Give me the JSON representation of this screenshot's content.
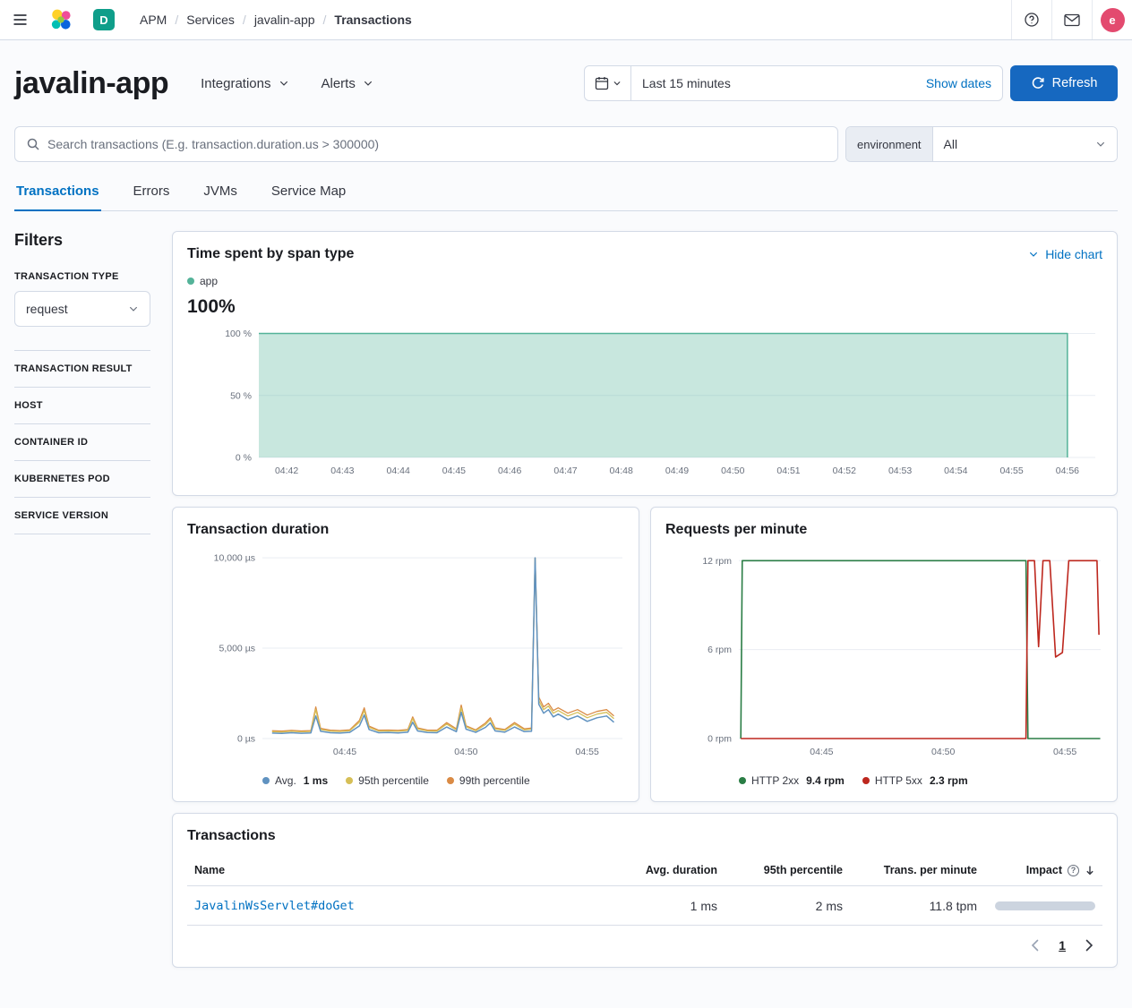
{
  "colors": {
    "primary_link": "#0071c2",
    "refresh_button": "#1668c0",
    "deployment_badge": "#0f9e8a",
    "avatar": "#e34a6f",
    "span_app": "#54B399",
    "avg_blue": "#6092C0",
    "p95_yellow": "#D6BF57",
    "p99_orange": "#DA8B45",
    "http2xx_green": "#2a7d45",
    "http5xx_red": "#BD271E"
  },
  "topbar": {
    "deployment_badge": "D",
    "breadcrumbs": [
      "APM",
      "Services",
      "javalin-app",
      "Transactions"
    ],
    "avatar_initial": "e"
  },
  "header": {
    "title": "javalin-app",
    "integrations_label": "Integrations",
    "alerts_label": "Alerts",
    "time_range": "Last 15 minutes",
    "show_dates": "Show dates",
    "refresh": "Refresh"
  },
  "search": {
    "placeholder": "Search transactions (E.g. transaction.duration.us > 300000)",
    "environment_label": "environment",
    "environment_value": "All"
  },
  "tabs": [
    {
      "label": "Transactions"
    },
    {
      "label": "Errors"
    },
    {
      "label": "JVMs"
    },
    {
      "label": "Service Map"
    }
  ],
  "filters": {
    "title": "Filters",
    "transaction_type": {
      "label": "TRANSACTION TYPE",
      "value": "request"
    },
    "sections": [
      "TRANSACTION RESULT",
      "HOST",
      "CONTAINER ID",
      "KUBERNETES POD",
      "SERVICE VERSION"
    ]
  },
  "span_panel": {
    "title": "Time spent by span type",
    "hide_chart": "Hide chart",
    "legend": [
      {
        "label": "app"
      }
    ],
    "big_value": "100%",
    "chart_data": {
      "type": "area",
      "xlim": [
        0,
        15
      ],
      "ylim": [
        0,
        104
      ],
      "x_ticks": [
        {
          "pos": 0.5,
          "label": "04:42"
        },
        {
          "pos": 1.5,
          "label": "04:43"
        },
        {
          "pos": 2.5,
          "label": "04:44"
        },
        {
          "pos": 3.5,
          "label": "04:45"
        },
        {
          "pos": 4.5,
          "label": "04:46"
        },
        {
          "pos": 5.5,
          "label": "04:47"
        },
        {
          "pos": 6.5,
          "label": "04:48"
        },
        {
          "pos": 7.5,
          "label": "04:49"
        },
        {
          "pos": 8.5,
          "label": "04:50"
        },
        {
          "pos": 9.5,
          "label": "04:51"
        },
        {
          "pos": 10.5,
          "label": "04:52"
        },
        {
          "pos": 11.5,
          "label": "04:53"
        },
        {
          "pos": 12.5,
          "label": "04:54"
        },
        {
          "pos": 13.5,
          "label": "04:55"
        },
        {
          "pos": 14.5,
          "label": "04:56"
        }
      ],
      "y_ticks": [
        {
          "pos": 0,
          "label": "0 %"
        },
        {
          "pos": 50,
          "label": "50 %"
        },
        {
          "pos": 100,
          "label": "100 %"
        }
      ],
      "series": [
        {
          "name": "app",
          "color": "#54B399",
          "fill": "#54B399",
          "fill_opacity": 0.32,
          "width": 1.5,
          "points": [
            [
              0,
              100
            ],
            [
              14.5,
              100
            ],
            [
              14.5,
              0
            ]
          ]
        }
      ]
    }
  },
  "duration_panel": {
    "title": "Transaction duration",
    "legend": [
      {
        "label": "Avg.",
        "value": "1 ms"
      },
      {
        "label": "95th percentile",
        "value": ""
      },
      {
        "label": "99th percentile",
        "value": ""
      }
    ],
    "chart_data": {
      "type": "line",
      "xlim": [
        0,
        14.85
      ],
      "ylim": [
        0,
        10500
      ],
      "x_ticks": [
        {
          "pos": 3.4,
          "label": "04:45"
        },
        {
          "pos": 8.4,
          "label": "04:50"
        },
        {
          "pos": 13.4,
          "label": "04:55"
        }
      ],
      "y_ticks": [
        {
          "pos": 0,
          "label": "0 µs"
        },
        {
          "pos": 5000,
          "label": "5,000 µs"
        },
        {
          "pos": 10000,
          "label": "10,000 µs"
        }
      ],
      "x": [
        0.4,
        0.8,
        1.2,
        1.6,
        2.0,
        2.2,
        2.4,
        2.8,
        3.2,
        3.6,
        4.0,
        4.2,
        4.4,
        4.8,
        5.2,
        5.6,
        6.0,
        6.2,
        6.4,
        6.8,
        7.2,
        7.6,
        8.0,
        8.2,
        8.4,
        8.8,
        9.2,
        9.4,
        9.6,
        10.0,
        10.4,
        10.8,
        11.1,
        11.25,
        11.4,
        11.6,
        11.8,
        12.0,
        12.2,
        12.6,
        13.0,
        13.4,
        13.8,
        14.2,
        14.5
      ],
      "series": [
        {
          "name": "99th percentile",
          "color": "#DA8B45",
          "width": 1.3,
          "values": [
            430,
            410,
            450,
            420,
            440,
            1750,
            560,
            460,
            440,
            480,
            1000,
            1700,
            690,
            460,
            470,
            450,
            500,
            1200,
            590,
            470,
            460,
            880,
            540,
            1850,
            710,
            480,
            860,
            1150,
            590,
            500,
            880,
            540,
            580,
            10000,
            2300,
            1750,
            1950,
            1550,
            1700,
            1400,
            1600,
            1300,
            1500,
            1600,
            1250
          ]
        },
        {
          "name": "95th percentile",
          "color": "#D6BF57",
          "width": 1.3,
          "values": [
            380,
            360,
            400,
            370,
            390,
            1600,
            500,
            410,
            390,
            430,
            900,
            1550,
            620,
            410,
            420,
            400,
            450,
            1100,
            530,
            420,
            410,
            800,
            480,
            1700,
            650,
            430,
            780,
            1050,
            530,
            450,
            800,
            480,
            520,
            10000,
            2100,
            1600,
            1800,
            1400,
            1550,
            1250,
            1450,
            1150,
            1350,
            1450,
            1100
          ]
        },
        {
          "name": "Avg.",
          "color": "#6092C0",
          "width": 1.5,
          "values": [
            300,
            280,
            320,
            290,
            310,
            1250,
            400,
            320,
            300,
            340,
            700,
            1300,
            500,
            320,
            330,
            310,
            350,
            900,
            420,
            330,
            320,
            640,
            380,
            1450,
            520,
            340,
            620,
            860,
            420,
            350,
            640,
            380,
            400,
            10000,
            1900,
            1400,
            1600,
            1200,
            1350,
            1050,
            1250,
            950,
            1150,
            1250,
            900
          ]
        }
      ]
    }
  },
  "rpm_panel": {
    "title": "Requests per minute",
    "legend": [
      {
        "label": "HTTP 2xx",
        "value": "9.4 rpm"
      },
      {
        "label": "HTTP 5xx",
        "value": "2.3 rpm"
      }
    ],
    "chart_data": {
      "type": "line",
      "xlim": [
        0,
        14.87
      ],
      "ylim": [
        0,
        12.8
      ],
      "x_ticks": [
        {
          "pos": 3.4,
          "label": "04:45"
        },
        {
          "pos": 8.4,
          "label": "04:50"
        },
        {
          "pos": 13.4,
          "label": "04:55"
        }
      ],
      "y_ticks": [
        {
          "pos": 0,
          "label": "0 rpm"
        },
        {
          "pos": 6,
          "label": "6 rpm"
        },
        {
          "pos": 12,
          "label": "12 rpm"
        }
      ],
      "series": [
        {
          "name": "HTTP 2xx",
          "color": "#2a7d45",
          "width": 1.6,
          "points": [
            [
              0.08,
              0
            ],
            [
              0.14,
              12
            ],
            [
              11.8,
              12
            ],
            [
              11.88,
              0
            ],
            [
              14.85,
              0
            ]
          ]
        },
        {
          "name": "HTTP 5xx",
          "color": "#BD271E",
          "width": 1.6,
          "points": [
            [
              0.08,
              0
            ],
            [
              11.8,
              0
            ],
            [
              11.88,
              12
            ],
            [
              12.15,
              12
            ],
            [
              12.32,
              6.2
            ],
            [
              12.5,
              12
            ],
            [
              12.78,
              12
            ],
            [
              13.02,
              5.5
            ],
            [
              13.3,
              5.8
            ],
            [
              13.56,
              12
            ],
            [
              14.72,
              12
            ],
            [
              14.8,
              7
            ]
          ]
        }
      ]
    }
  },
  "transactions_panel": {
    "title": "Transactions",
    "columns": [
      "Name",
      "Avg. duration",
      "95th percentile",
      "Trans. per minute",
      "Impact"
    ],
    "rows": [
      {
        "name": "JavalinWsServlet#doGet",
        "avg_duration": "1 ms",
        "p95": "2 ms",
        "tpm": "11.8 tpm",
        "impact_pct": 100
      }
    ],
    "pagination": {
      "page": "1"
    }
  }
}
